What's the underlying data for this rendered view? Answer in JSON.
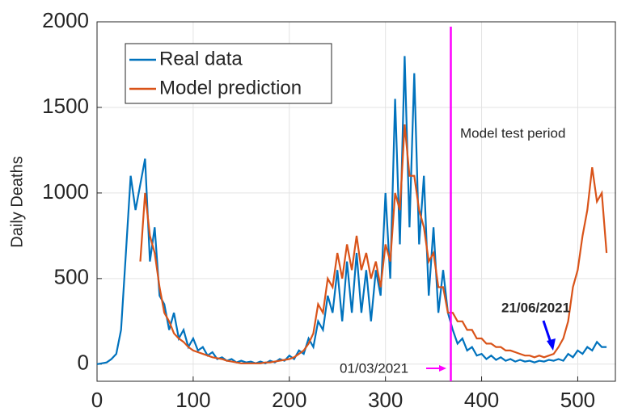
{
  "chart_data": {
    "type": "line",
    "ylabel": "Daily Deaths",
    "xlim": [
      0,
      540
    ],
    "ylim": [
      -100,
      2000
    ],
    "xticks": [
      0,
      100,
      200,
      300,
      400,
      500
    ],
    "yticks": [
      0,
      500,
      1000,
      1500,
      2000
    ],
    "grid": true,
    "legend": "upper left",
    "x": [
      0,
      5,
      10,
      15,
      20,
      25,
      30,
      35,
      40,
      45,
      50,
      55,
      60,
      65,
      70,
      75,
      80,
      85,
      90,
      95,
      100,
      105,
      110,
      115,
      120,
      125,
      130,
      135,
      140,
      145,
      150,
      155,
      160,
      165,
      170,
      175,
      180,
      185,
      190,
      195,
      200,
      205,
      210,
      215,
      220,
      225,
      230,
      235,
      240,
      245,
      250,
      255,
      260,
      265,
      270,
      275,
      280,
      285,
      290,
      295,
      300,
      305,
      310,
      315,
      320,
      325,
      330,
      335,
      340,
      345,
      350,
      355,
      360,
      365,
      370,
      375,
      380,
      385,
      390,
      395,
      400,
      405,
      410,
      415,
      420,
      425,
      430,
      435,
      440,
      445,
      450,
      455,
      460,
      465,
      470,
      475,
      480,
      485,
      490,
      495,
      500,
      505,
      510,
      515,
      520,
      525,
      530
    ],
    "series": [
      {
        "name": "Real data",
        "color": "#0072bd",
        "values": [
          0,
          5,
          10,
          30,
          60,
          200,
          650,
          1100,
          900,
          1050,
          1200,
          600,
          800,
          400,
          350,
          200,
          300,
          150,
          200,
          100,
          150,
          80,
          100,
          50,
          70,
          30,
          40,
          20,
          30,
          10,
          20,
          10,
          15,
          5,
          15,
          5,
          20,
          10,
          30,
          20,
          50,
          30,
          80,
          60,
          150,
          100,
          250,
          200,
          400,
          300,
          550,
          250,
          600,
          300,
          650,
          300,
          550,
          250,
          550,
          400,
          1000,
          500,
          1550,
          700,
          1800,
          800,
          1700,
          700,
          1100,
          400,
          800,
          300,
          550,
          300,
          200,
          120,
          150,
          80,
          100,
          50,
          60,
          30,
          50,
          25,
          40,
          20,
          30,
          15,
          25,
          15,
          20,
          10,
          20,
          15,
          25,
          20,
          30,
          20,
          60,
          40,
          80,
          60,
          100,
          80,
          130,
          100,
          100
        ]
      },
      {
        "name": "Model prediction",
        "color": "#d95319",
        "values": [
          null,
          null,
          null,
          null,
          null,
          null,
          null,
          null,
          null,
          600,
          1000,
          750,
          650,
          450,
          300,
          250,
          180,
          150,
          130,
          100,
          80,
          70,
          60,
          50,
          40,
          35,
          30,
          20,
          15,
          10,
          5,
          5,
          5,
          5,
          5,
          10,
          10,
          15,
          20,
          25,
          30,
          40,
          60,
          80,
          120,
          180,
          350,
          300,
          500,
          450,
          650,
          500,
          700,
          550,
          750,
          550,
          650,
          500,
          600,
          450,
          700,
          600,
          1000,
          900,
          1400,
          1100,
          1100,
          900,
          800,
          600,
          650,
          450,
          450,
          300,
          300,
          250,
          250,
          200,
          200,
          150,
          150,
          120,
          120,
          100,
          100,
          80,
          80,
          70,
          60,
          50,
          50,
          40,
          50,
          40,
          50,
          60,
          100,
          150,
          250,
          450,
          550,
          750,
          900,
          1150,
          950,
          1000,
          650
        ]
      }
    ],
    "vline": {
      "x": 368,
      "color": "#ff00ff"
    },
    "annotations": [
      {
        "text": "Model test period",
        "color": "#ff00ff"
      },
      {
        "text": "01/03/2021",
        "color": "#ff00ff"
      },
      {
        "text": "21/06/2021",
        "color": "#0000ff"
      }
    ]
  }
}
